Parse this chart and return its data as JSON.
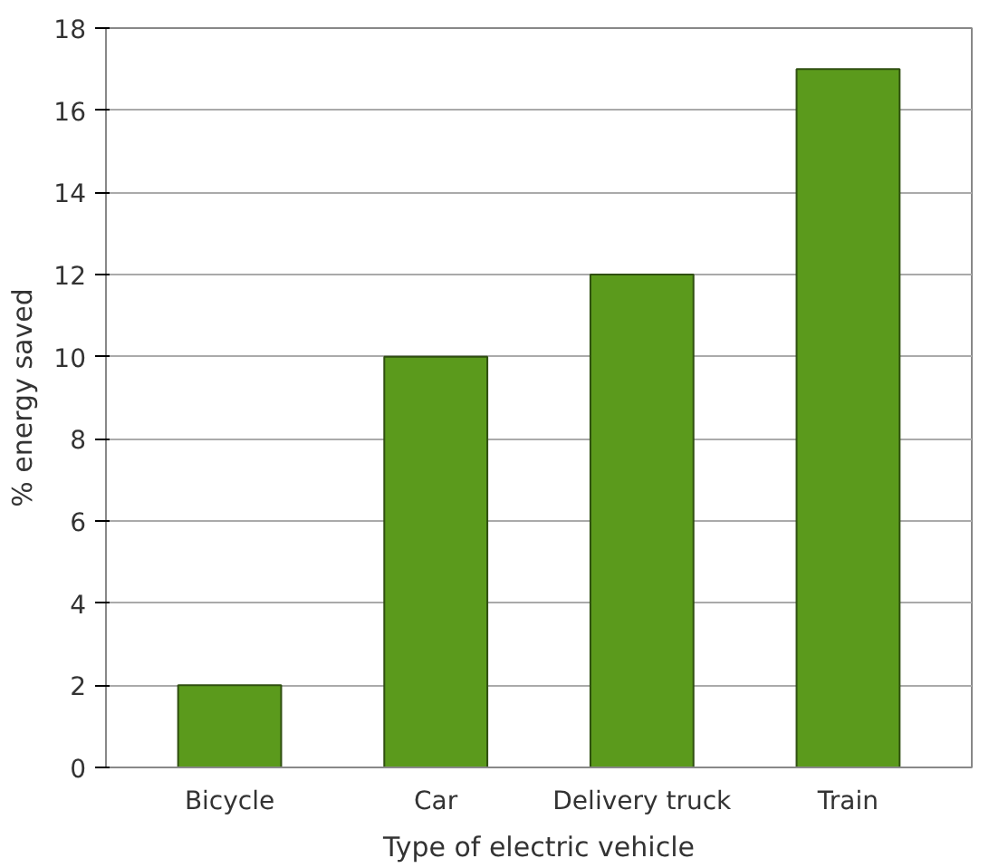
{
  "chart_data": {
    "type": "bar",
    "xlabel": "Type of electric vehicle",
    "ylabel": "% energy saved",
    "categories": [
      "Bicycle",
      "Car",
      "Delivery truck",
      "Train"
    ],
    "values": [
      2,
      10,
      12,
      17
    ],
    "color": "#5b9a1c",
    "ylim": [
      0,
      18
    ],
    "yticks": [
      0,
      2,
      4,
      6,
      8,
      10,
      12,
      14,
      16,
      18
    ],
    "grid": "y"
  }
}
